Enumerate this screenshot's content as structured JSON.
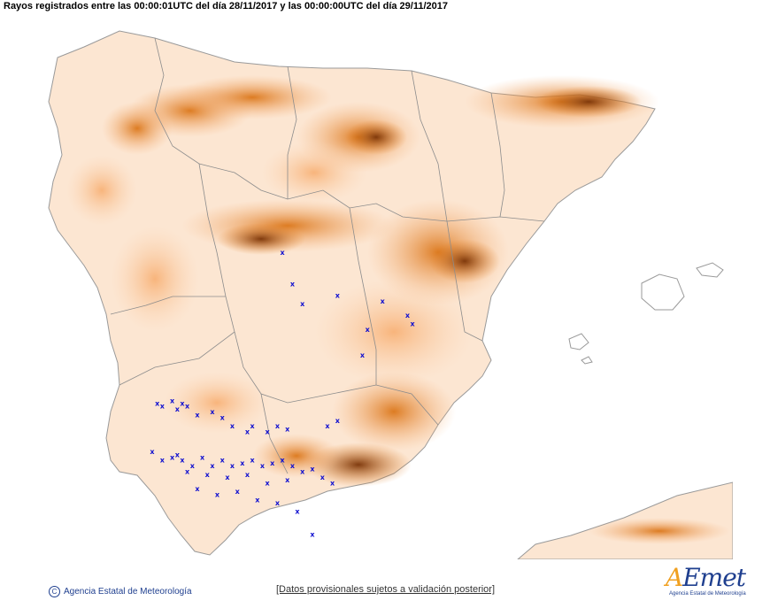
{
  "title": "Rayos registrados entre las 00:00:01UTC del día 28/11/2017 y las 00:00:00UTC del día 29/11/2017",
  "footer": {
    "copyright_symbol": "C",
    "agency": "Agencia Estatal de Meteorología",
    "note": "[Datos provisionales sujetos a validación posterior]"
  },
  "logo": {
    "first_letter": "A",
    "rest": "Emet",
    "subtitle": "Agencia Estatal de Meteorología"
  },
  "colors": {
    "lightning_marker": "#1010d0",
    "terrain_low": "#fce6d2",
    "terrain_mid": "#f7b27a",
    "terrain_high": "#e8801e",
    "terrain_peak": "#8a3c08",
    "borders": "#8c8c8c"
  },
  "legend_marker": "x",
  "chart_data": {
    "type": "scatter",
    "series": [
      {
        "marker": "x",
        "points": [
          [
            -4.4,
            39.85
          ],
          [
            -4.2,
            39.3
          ],
          [
            -4.0,
            38.95
          ],
          [
            -3.3,
            39.1
          ],
          [
            -2.4,
            39.0
          ],
          [
            -2.7,
            38.5
          ],
          [
            -2.8,
            38.05
          ],
          [
            -1.9,
            38.75
          ],
          [
            -1.8,
            38.6
          ],
          [
            -6.9,
            37.2
          ],
          [
            -6.8,
            37.15
          ],
          [
            -6.6,
            37.25
          ],
          [
            -6.5,
            37.1
          ],
          [
            -6.4,
            37.2
          ],
          [
            -6.3,
            37.15
          ],
          [
            -6.1,
            37.0
          ],
          [
            -5.8,
            37.05
          ],
          [
            -5.6,
            36.95
          ],
          [
            -5.4,
            36.8
          ],
          [
            -5.1,
            36.7
          ],
          [
            -5.0,
            36.8
          ],
          [
            -4.7,
            36.7
          ],
          [
            -4.5,
            36.8
          ],
          [
            -4.3,
            36.75
          ],
          [
            -3.5,
            36.8
          ],
          [
            -3.3,
            36.9
          ],
          [
            -7.0,
            36.35
          ],
          [
            -6.8,
            36.2
          ],
          [
            -6.6,
            36.25
          ],
          [
            -6.4,
            36.2
          ],
          [
            -6.2,
            36.1
          ],
          [
            -6.0,
            36.25
          ],
          [
            -5.8,
            36.1
          ],
          [
            -5.6,
            36.2
          ],
          [
            -5.4,
            36.1
          ],
          [
            -5.2,
            36.15
          ],
          [
            -5.0,
            36.2
          ],
          [
            -4.8,
            36.1
          ],
          [
            -4.6,
            36.15
          ],
          [
            -4.4,
            36.2
          ],
          [
            -4.2,
            36.1
          ],
          [
            -4.0,
            36.0
          ],
          [
            -3.8,
            36.05
          ],
          [
            -6.5,
            36.3
          ],
          [
            -6.3,
            36.0
          ],
          [
            -5.9,
            35.95
          ],
          [
            -5.5,
            35.9
          ],
          [
            -5.1,
            35.95
          ],
          [
            -4.7,
            35.8
          ],
          [
            -4.3,
            35.85
          ],
          [
            -3.6,
            35.9
          ],
          [
            -3.4,
            35.8
          ],
          [
            -6.1,
            35.7
          ],
          [
            -5.7,
            35.6
          ],
          [
            -5.3,
            35.65
          ],
          [
            -4.9,
            35.5
          ],
          [
            -4.5,
            35.45
          ],
          [
            -4.1,
            35.3
          ],
          [
            -3.8,
            34.9
          ]
        ]
      }
    ]
  }
}
